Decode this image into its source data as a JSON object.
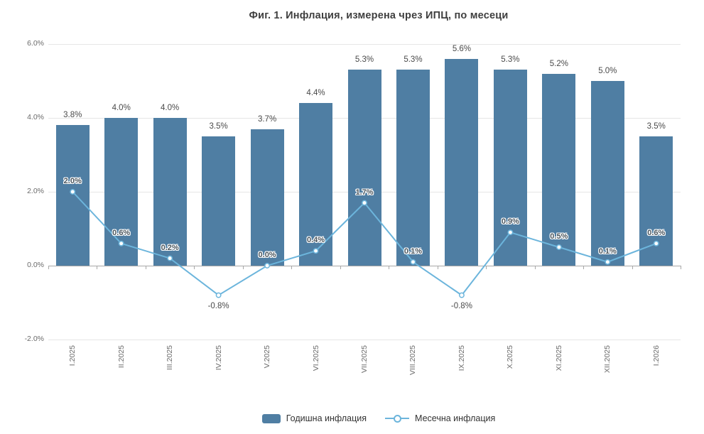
{
  "title": "Фиг. 1. Инфлация, измерена чрез ИПЦ, по месеци",
  "legend": {
    "annual_label": "Годишна инфлация",
    "monthly_label": "Месечна инфлация"
  },
  "colors": {
    "bar": "#4f7ea3",
    "line": "#6cb5dc",
    "marker_fill": "#ffffff",
    "grid": "#e6e6e6",
    "axis": "#a8a8a8",
    "title_text": "#3f3f3f",
    "value_text": "#4a4a4a",
    "axis_text": "#6b6b6b"
  },
  "chart_data": {
    "type": "combo",
    "title": "Фиг. 1. Инфлация, измерена чрез ИПЦ, по месеци",
    "categories": [
      "I.2025",
      "II.2025",
      "III.2025",
      "IV.2025",
      "V.2025",
      "VI.2025",
      "VII.2025",
      "VIII.2025",
      "IX.2025",
      "X.2025",
      "XI.2025",
      "XII.2025",
      "I.2026"
    ],
    "series": [
      {
        "name": "Годишна инфлация",
        "type": "bar",
        "values": [
          3.8,
          4.0,
          4.0,
          3.5,
          3.7,
          4.4,
          5.3,
          5.3,
          5.6,
          5.3,
          5.2,
          5.0,
          3.5
        ],
        "labels": [
          "3.8%",
          "4.0%",
          "4.0%",
          "3.5%",
          "3.7%",
          "4.4%",
          "5.3%",
          "5.3%",
          "5.6%",
          "5.3%",
          "5.2%",
          "5.0%",
          "3.5%"
        ]
      },
      {
        "name": "Месечна инфлация",
        "type": "line",
        "values": [
          2.0,
          0.6,
          0.2,
          -0.8,
          0.0,
          0.4,
          1.7,
          0.1,
          -0.8,
          0.9,
          0.5,
          0.1,
          0.6
        ],
        "labels": [
          "2.0%",
          "0.6%",
          "0.2%",
          "-0.8%",
          "0.0%",
          "0.4%",
          "1.7%",
          "0.1%",
          "-0.8%",
          "0.9%",
          "0.5%",
          "0.1%",
          "0.6%"
        ]
      }
    ],
    "ylim": [
      -2.0,
      6.0
    ],
    "yticks": [
      6,
      4,
      2,
      0,
      -2
    ],
    "ytick_labels": [
      "6.0%",
      "4.0%",
      "2.0%",
      "0.0%",
      "-2.0%"
    ],
    "grid": true,
    "data_labels": true,
    "legend_position": "bottom"
  }
}
